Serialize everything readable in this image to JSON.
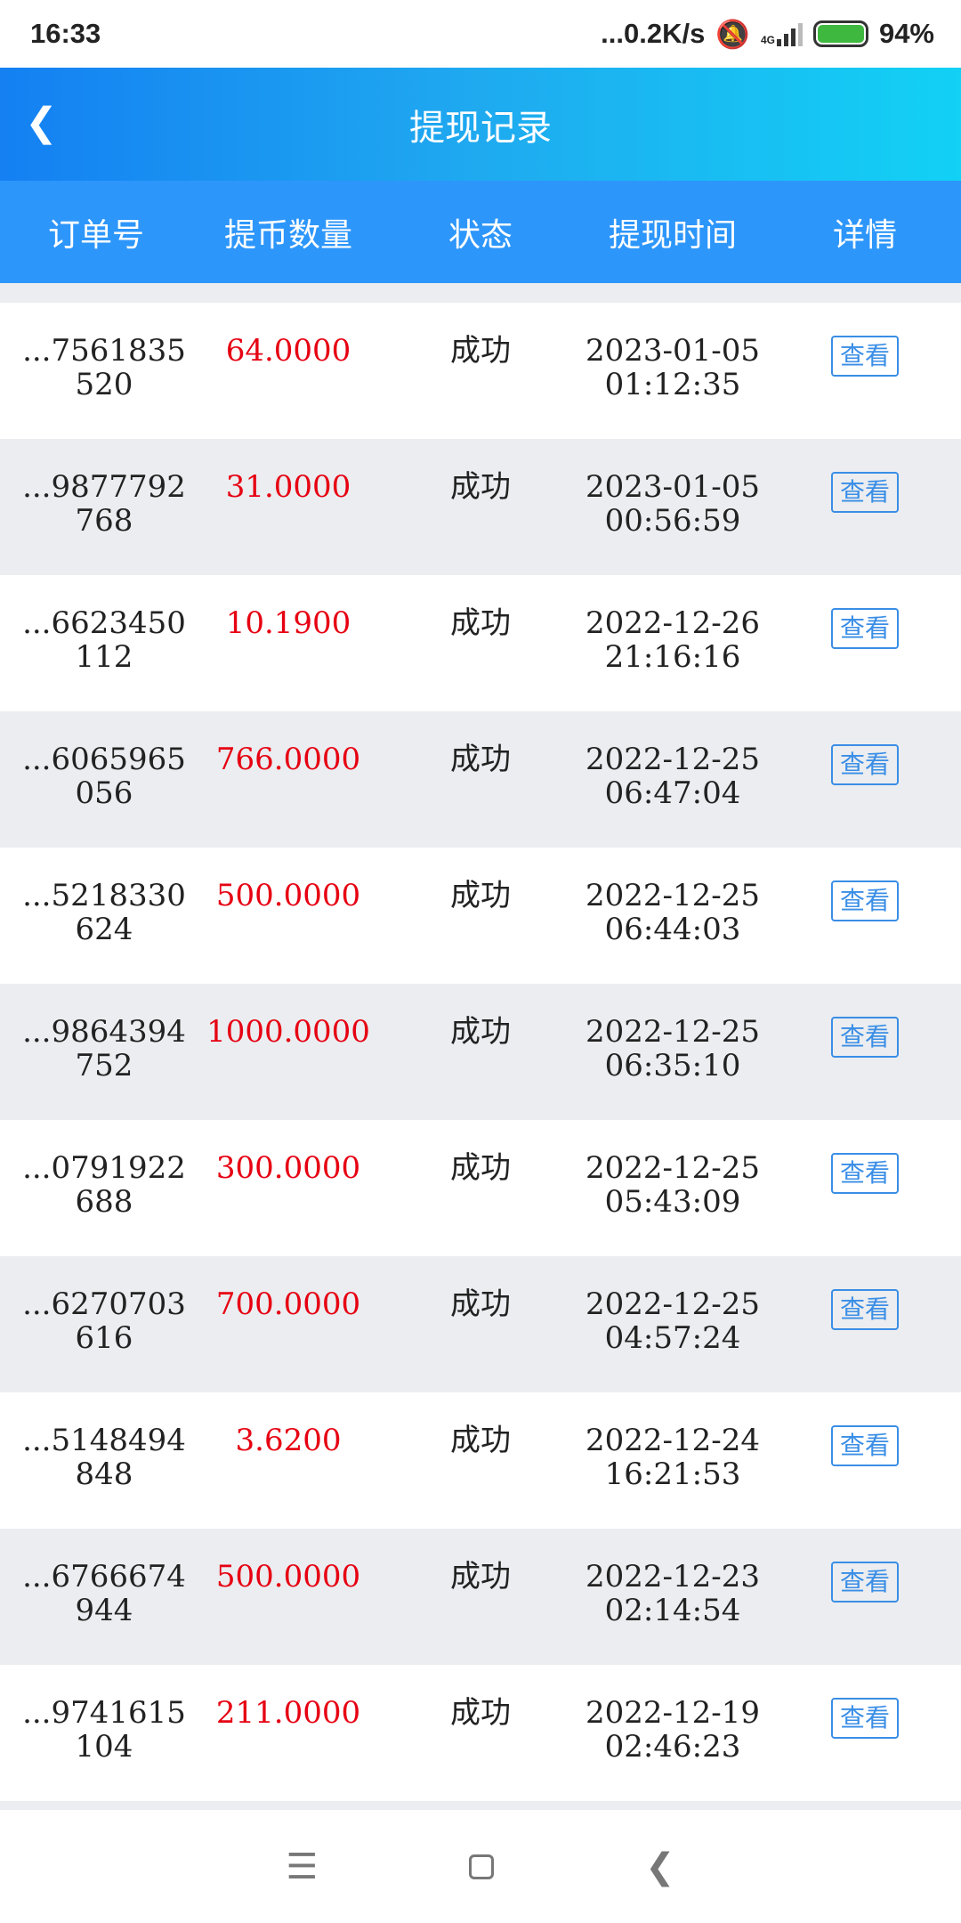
{
  "status_bar": {
    "time": "16:33",
    "net_speed": "...0.2K/s",
    "network": "4G",
    "battery": "94%",
    "battery_level": 0.94
  },
  "header": {
    "title": "提现记录",
    "back_icon": "chevron-left-icon"
  },
  "columns": [
    "订单号",
    "提币数量",
    "状态",
    "提现时间",
    "详情"
  ],
  "rows": [
    {
      "order_1": "...7561835",
      "order_2": "520",
      "amount": "64.0000",
      "status": "成功",
      "date": "2023-01-05",
      "time": "01:12:35",
      "action": "查看"
    },
    {
      "order_1": "...9877792",
      "order_2": "768",
      "amount": "31.0000",
      "status": "成功",
      "date": "2023-01-05",
      "time": "00:56:59",
      "action": "查看"
    },
    {
      "order_1": "...6623450",
      "order_2": "112",
      "amount": "10.1900",
      "status": "成功",
      "date": "2022-12-26",
      "time": "21:16:16",
      "action": "查看"
    },
    {
      "order_1": "...6065965",
      "order_2": "056",
      "amount": "766.0000",
      "status": "成功",
      "date": "2022-12-25",
      "time": "06:47:04",
      "action": "查看"
    },
    {
      "order_1": "...5218330",
      "order_2": "624",
      "amount": "500.0000",
      "status": "成功",
      "date": "2022-12-25",
      "time": "06:44:03",
      "action": "查看"
    },
    {
      "order_1": "...9864394",
      "order_2": "752",
      "amount": "1000.0000",
      "status": "成功",
      "date": "2022-12-25",
      "time": "06:35:10",
      "action": "查看"
    },
    {
      "order_1": "...0791922",
      "order_2": "688",
      "amount": "300.0000",
      "status": "成功",
      "date": "2022-12-25",
      "time": "05:43:09",
      "action": "查看"
    },
    {
      "order_1": "...6270703",
      "order_2": "616",
      "amount": "700.0000",
      "status": "成功",
      "date": "2022-12-25",
      "time": "04:57:24",
      "action": "查看"
    },
    {
      "order_1": "...5148494",
      "order_2": "848",
      "amount": "3.6200",
      "status": "成功",
      "date": "2022-12-24",
      "time": "16:21:53",
      "action": "查看"
    },
    {
      "order_1": "...6766674",
      "order_2": "944",
      "amount": "500.0000",
      "status": "成功",
      "date": "2022-12-23",
      "time": "02:14:54",
      "action": "查看"
    },
    {
      "order_1": "...9741615",
      "order_2": "104",
      "amount": "211.0000",
      "status": "成功",
      "date": "2022-12-19",
      "time": "02:46:23",
      "action": "查看"
    }
  ],
  "colors": {
    "amount": "#e60012",
    "header_start": "#1480f2",
    "header_end": "#12d1f5",
    "column_header": "#2d96fb",
    "button": "#3a8ee6"
  }
}
